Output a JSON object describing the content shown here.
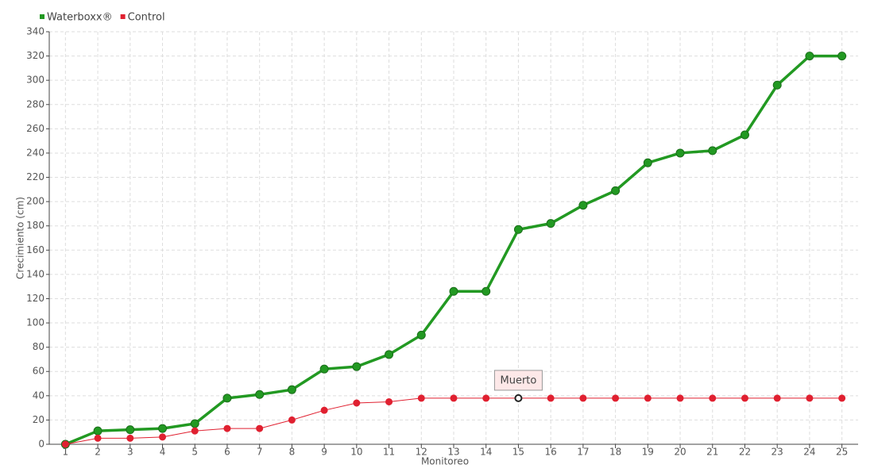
{
  "chart_data": {
    "type": "line",
    "x_label": "Monitoreo",
    "y_label": "Crecimiento (cm)",
    "categories": [
      "1",
      "2",
      "3",
      "4",
      "5",
      "6",
      "7",
      "8",
      "9",
      "10",
      "11",
      "12",
      "13",
      "14",
      "15",
      "16",
      "17",
      "18",
      "19",
      "20",
      "21",
      "22",
      "23",
      "24",
      "25"
    ],
    "series": [
      {
        "name": "Waterboxx®",
        "color": "#229922",
        "values": [
          0,
          11,
          12,
          13,
          17,
          38,
          41,
          45,
          62,
          64,
          74,
          90,
          126,
          126,
          177,
          182,
          197,
          209,
          232,
          240,
          242,
          255,
          296,
          320,
          320
        ]
      },
      {
        "name": "Control",
        "color": "#e02030",
        "values": [
          0,
          5,
          5,
          6,
          11,
          13,
          13,
          20,
          28,
          34,
          35,
          38,
          38,
          38,
          38,
          38,
          38,
          38,
          38,
          38,
          38,
          38,
          38,
          38,
          38
        ]
      }
    ],
    "annotations": [
      {
        "label": "Muerto",
        "series": "Control",
        "category": "15"
      }
    ],
    "ylim": [
      0,
      340
    ],
    "yticks": [
      0,
      20,
      40,
      60,
      80,
      100,
      120,
      140,
      160,
      180,
      200,
      220,
      240,
      260,
      280,
      300,
      320,
      340
    ],
    "grid": true,
    "legend": "top-left"
  }
}
